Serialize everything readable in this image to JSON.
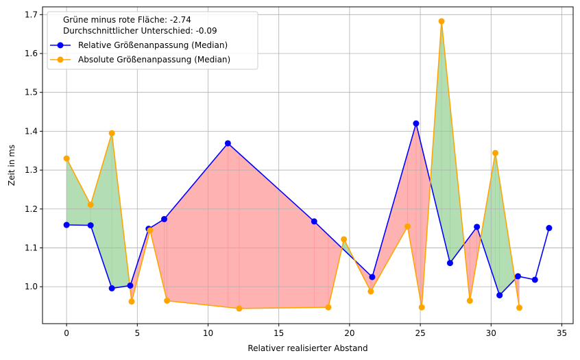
{
  "chart_data": {
    "type": "line",
    "xlabel": "Relativer realisierter Abstand",
    "ylabel": "Zeit in ms",
    "xlim": [
      -1.7,
      35.8
    ],
    "ylim": [
      0.905,
      1.72
    ],
    "xticks": [
      0,
      5,
      10,
      15,
      20,
      25,
      30,
      35
    ],
    "yticks": [
      1.0,
      1.1,
      1.2,
      1.3,
      1.4,
      1.5,
      1.6,
      1.7
    ],
    "xtick_labels": [
      "0",
      "5",
      "10",
      "15",
      "20",
      "25",
      "30",
      "35"
    ],
    "ytick_labels": [
      "1.0",
      "1.1",
      "1.2",
      "1.3",
      "1.4",
      "1.5",
      "1.6",
      "1.7"
    ],
    "grid": true,
    "legend_position": "upper-left",
    "annotations": [
      "Grüne minus rote Fläche: -2.74",
      "Durchschnittlicher Unterschied: -0.09"
    ],
    "fill_colors": {
      "positive": "#2ca02c",
      "negative": "#ff0000"
    },
    "series": [
      {
        "name": "Relative Größenanpassung (Median)",
        "color": "#0000ff",
        "x": [
          0.0,
          1.7,
          3.2,
          4.5,
          5.8,
          6.9,
          11.4,
          17.5,
          21.6,
          24.7,
          27.1,
          29.0,
          30.6,
          31.9,
          33.1,
          34.1
        ],
        "y": [
          1.159,
          1.158,
          0.996,
          1.003,
          1.149,
          1.174,
          1.369,
          1.168,
          1.025,
          1.42,
          1.061,
          1.154,
          0.978,
          1.027,
          1.018,
          1.151
        ]
      },
      {
        "name": "Absolute Größenanpassung (Median)",
        "color": "#ffa500",
        "x": [
          0.0,
          1.7,
          3.2,
          4.6,
          5.9,
          7.1,
          12.2,
          18.5,
          19.6,
          21.5,
          24.1,
          25.1,
          26.5,
          28.5,
          30.3,
          32.0
        ],
        "y": [
          1.33,
          1.211,
          1.395,
          0.962,
          1.145,
          0.964,
          0.944,
          0.947,
          1.122,
          0.988,
          1.155,
          0.947,
          1.683,
          0.964,
          1.344,
          0.946
        ]
      }
    ]
  }
}
